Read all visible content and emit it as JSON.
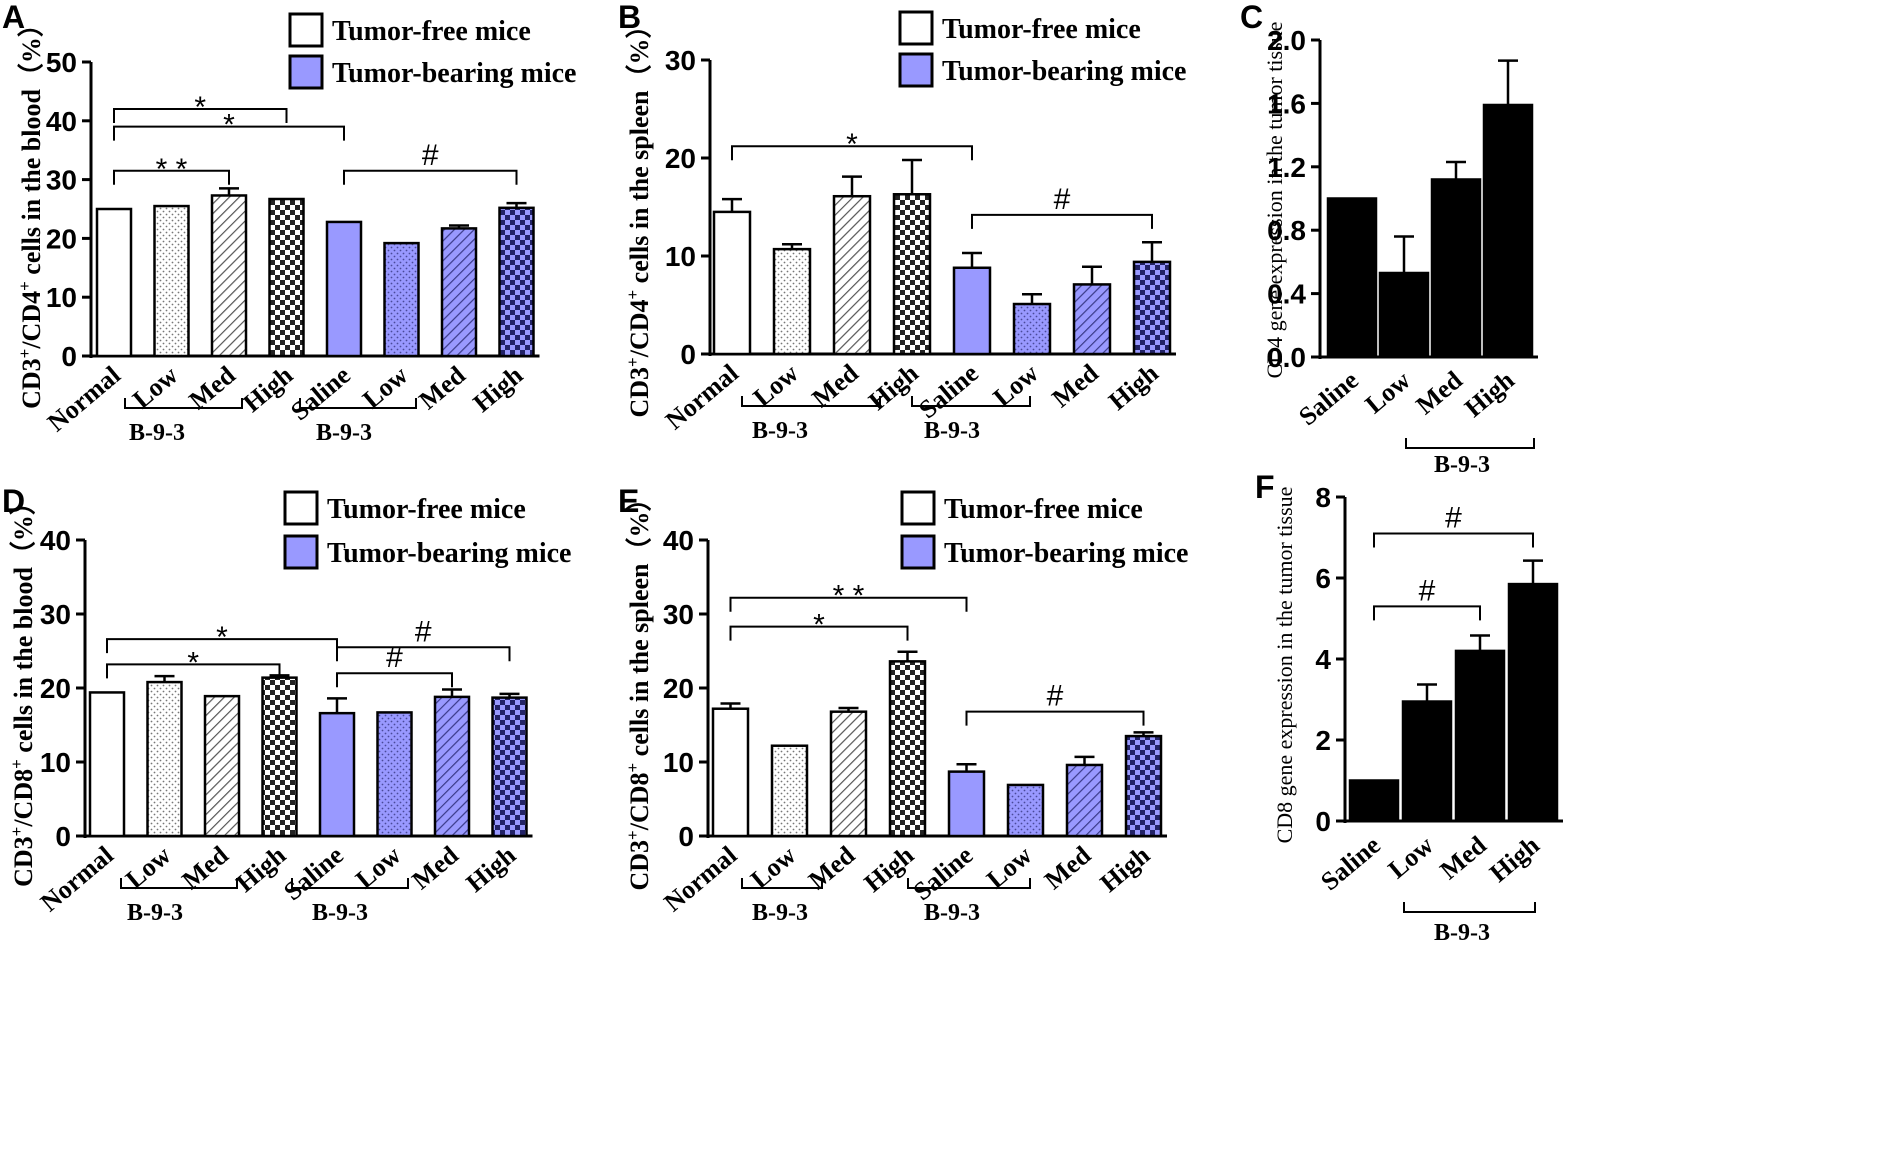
{
  "legend": {
    "tumor_free": "Tumor-free mice",
    "tumor_bearing": "Tumor-bearing mice"
  },
  "colors": {
    "tumor_bearing": "#9999ff",
    "tumor_free": "#ffffff",
    "gene_bar": "#000000",
    "axis": "#000000"
  },
  "chart_data": [
    {
      "panel": "A",
      "type": "bar",
      "ylabel_base": "CD3",
      "ylabel_sup1": "+",
      "ylabel_mid": "/CD4",
      "ylabel_sup2": "+",
      "ylabel_tail": " cells in the blood（%）",
      "ylim": [
        0,
        50
      ],
      "ticks": [
        "0",
        "10",
        "20",
        "30",
        "40",
        "50"
      ],
      "categories": [
        "Normal",
        "Low",
        "Med",
        "High",
        "Saline",
        "Low",
        "Med",
        "High"
      ],
      "values": [
        25,
        25.5,
        27.3,
        26.7,
        22.8,
        19.2,
        21.7,
        25.2
      ],
      "errors": [
        0,
        0,
        1.2,
        0,
        0,
        0,
        0.5,
        0.8
      ],
      "series": [
        0,
        0,
        0,
        0,
        1,
        1,
        1,
        1
      ],
      "patterns": [
        "none",
        "dots",
        "hatch",
        "checker",
        "none",
        "dots",
        "hatch",
        "checker"
      ],
      "group_labels": [
        "B-9-3",
        "B-9-3"
      ],
      "brackets": [
        {
          "from": 0,
          "to": 3,
          "level": 42,
          "label": "*"
        },
        {
          "from": 0,
          "to": 4,
          "level": 39,
          "label": "*"
        },
        {
          "from": 0,
          "to": 2,
          "level": 31.5,
          "label": "* *"
        },
        {
          "from": 4,
          "to": 7,
          "level": 31.5,
          "label": "#"
        }
      ]
    },
    {
      "panel": "B",
      "type": "bar",
      "ylabel_base": "CD3",
      "ylabel_sup1": "+",
      "ylabel_mid": "/CD4",
      "ylabel_sup2": "+",
      "ylabel_tail": " cells in the spleen（%）",
      "ylim": [
        0,
        30
      ],
      "ticks": [
        "0",
        "10",
        "20",
        "30"
      ],
      "categories": [
        "Normal",
        "Low",
        "Med",
        "High",
        "Saline",
        "Low",
        "Med",
        "High"
      ],
      "values": [
        14.5,
        10.7,
        16.1,
        16.3,
        8.8,
        5.1,
        7.1,
        9.4
      ],
      "errors": [
        1.3,
        0.5,
        2.0,
        3.5,
        1.5,
        1.0,
        1.8,
        2.0
      ],
      "series": [
        0,
        0,
        0,
        0,
        1,
        1,
        1,
        1
      ],
      "patterns": [
        "none",
        "dots",
        "hatch",
        "checker",
        "none",
        "dots",
        "hatch",
        "checker"
      ],
      "group_labels": [
        "B-9-3",
        "B-9-3"
      ],
      "brackets": [
        {
          "from": 0,
          "to": 4,
          "level": 21.2,
          "label": "*"
        },
        {
          "from": 4,
          "to": 7,
          "level": 14.2,
          "label": "#"
        }
      ]
    },
    {
      "panel": "C",
      "type": "bar",
      "ylabel": "CD4 gene expression in the tumor tissue",
      "ylim": [
        0,
        2.0
      ],
      "ticks": [
        "0.0",
        "0.4",
        "0.8",
        "1.2",
        "1.6",
        "2.0"
      ],
      "categories": [
        "Saline",
        "Low",
        "Med",
        "High"
      ],
      "values": [
        1.0,
        0.53,
        1.12,
        1.59
      ],
      "errors": [
        0,
        0.23,
        0.11,
        0.28
      ],
      "group_label": "B-9-3",
      "brackets": []
    },
    {
      "panel": "D",
      "type": "bar",
      "ylabel_base": "CD3",
      "ylabel_sup1": "+",
      "ylabel_mid": "/CD8",
      "ylabel_sup2": "+",
      "ylabel_tail": " cells in the blood（%）",
      "ylim": [
        0,
        40
      ],
      "ticks": [
        "0",
        "10",
        "20",
        "30",
        "40"
      ],
      "categories": [
        "Normal",
        "Low",
        "Med",
        "High",
        "Saline",
        "Low",
        "Med",
        "High"
      ],
      "values": [
        19.4,
        20.8,
        18.9,
        21.4,
        16.6,
        16.7,
        18.8,
        18.7
      ],
      "errors": [
        0,
        0.8,
        0,
        0.3,
        2.0,
        0,
        1.0,
        0.5
      ],
      "series": [
        0,
        0,
        0,
        0,
        1,
        1,
        1,
        1
      ],
      "patterns": [
        "none",
        "dots",
        "hatch",
        "checker",
        "none",
        "dots",
        "hatch",
        "checker"
      ],
      "group_labels": [
        "B-9-3",
        "B-9-3"
      ],
      "brackets": [
        {
          "from": 0,
          "to": 4,
          "level": 26.6,
          "label": "*"
        },
        {
          "from": 0,
          "to": 3,
          "level": 23.2,
          "label": "*"
        },
        {
          "from": 4,
          "to": 7,
          "level": 25.5,
          "label": "#"
        },
        {
          "from": 4,
          "to": 6,
          "level": 22.0,
          "label": "#"
        }
      ]
    },
    {
      "panel": "E",
      "type": "bar",
      "ylabel_base": "CD3",
      "ylabel_sup1": "+",
      "ylabel_mid": "/CD8",
      "ylabel_sup2": "+",
      "ylabel_tail": " cells in the spleen（%）",
      "ylim": [
        0,
        40
      ],
      "ticks": [
        "0",
        "10",
        "20",
        "30",
        "40"
      ],
      "categories": [
        "Normal",
        "Low",
        "Med",
        "High",
        "Saline",
        "Low",
        "Med",
        "High"
      ],
      "values": [
        17.2,
        12.2,
        16.8,
        23.6,
        8.7,
        6.9,
        9.6,
        13.5
      ],
      "errors": [
        0.7,
        0,
        0.5,
        1.3,
        1.0,
        0,
        1.1,
        0.5
      ],
      "series": [
        0,
        0,
        0,
        0,
        1,
        1,
        1,
        1
      ],
      "patterns": [
        "none",
        "dots",
        "hatch",
        "checker",
        "none",
        "dots",
        "hatch",
        "checker"
      ],
      "group_labels": [
        "B-9-3",
        "B-9-3"
      ],
      "brackets": [
        {
          "from": 0,
          "to": 4,
          "level": 32.2,
          "label": "* *"
        },
        {
          "from": 0,
          "to": 3,
          "level": 28.3,
          "label": "*"
        },
        {
          "from": 4,
          "to": 7,
          "level": 16.8,
          "label": "#"
        }
      ]
    },
    {
      "panel": "F",
      "type": "bar",
      "ylabel": "CD8 gene expression in the tumor tissue",
      "ylim": [
        0,
        8
      ],
      "ticks": [
        "0",
        "2",
        "4",
        "6",
        "8"
      ],
      "categories": [
        "Saline",
        "Low",
        "Med",
        "High"
      ],
      "values": [
        1.0,
        2.95,
        4.2,
        5.85
      ],
      "errors": [
        0,
        0.42,
        0.38,
        0.58
      ],
      "group_label": "B-9-3",
      "brackets": [
        {
          "from": 0,
          "to": 3,
          "level": 7.1,
          "label": "#"
        },
        {
          "from": 0,
          "to": 2,
          "level": 5.3,
          "label": "#"
        }
      ]
    }
  ]
}
